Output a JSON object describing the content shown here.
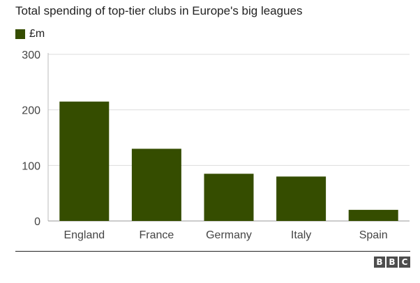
{
  "chart_data": {
    "type": "bar",
    "title": "Total spending of top-tier clubs in Europe's big leagues",
    "legend": {
      "label": "£m",
      "placement": "top-left"
    },
    "categories": [
      "England",
      "France",
      "Germany",
      "Italy",
      "Spain"
    ],
    "series": [
      {
        "name": "£m",
        "values": [
          215,
          130,
          85,
          80,
          20
        ]
      }
    ],
    "ylim": [
      0,
      300
    ],
    "yticks": [
      0,
      100,
      200,
      300
    ],
    "grid": true,
    "bar_color": "#354d00"
  },
  "logo": {
    "letters": [
      "B",
      "B",
      "C"
    ]
  }
}
